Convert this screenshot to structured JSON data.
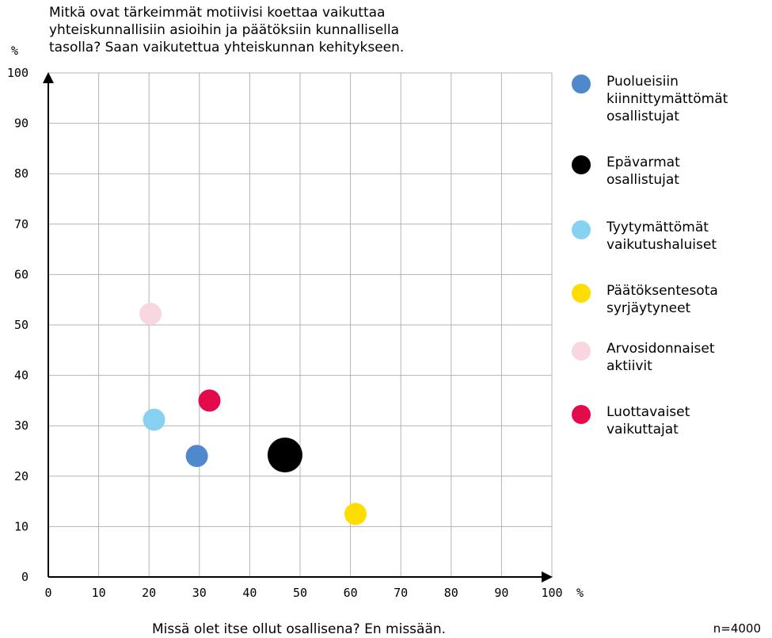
{
  "chart_data": {
    "type": "scatter",
    "title_lines": [
      "Mitkä ovat tärkeimmät motiivisi koettaa vaikuttaa",
      "yhteiskunnallisiin asioihin ja päätöksiin kunnallisella",
      "tasolla? Saan vaikutettua yhteiskunnan kehitykseen."
    ],
    "xlabel": "Missä olet itse ollut osallisena? En missään.",
    "x_unit": "%",
    "y_unit": "%",
    "xlim": [
      0,
      100
    ],
    "ylim": [
      0,
      100
    ],
    "x_ticks": [
      "0",
      "10",
      "20",
      "30",
      "40",
      "50",
      "60",
      "70",
      "80",
      "90",
      "100"
    ],
    "y_ticks": [
      "0",
      "10",
      "20",
      "30",
      "40",
      "50",
      "60",
      "70",
      "80",
      "90",
      "100"
    ],
    "grid": true,
    "legend_position": "right",
    "note": "n=4000",
    "series": [
      {
        "name_lines": [
          "Puolueisiin",
          "kiinnittymättömät",
          "osallistujat"
        ],
        "color": "#4f88cb",
        "x": 29.5,
        "y": 24,
        "size": "small"
      },
      {
        "name_lines": [
          "Epävarmat",
          "osallistujat"
        ],
        "color": "#000000",
        "x": 47,
        "y": 24.2,
        "size": "large"
      },
      {
        "name_lines": [
          "Tyytymättömät",
          "vaikutushaluiset"
        ],
        "color": "#87d1f1",
        "x": 21,
        "y": 31.2,
        "size": "small"
      },
      {
        "name_lines": [
          "Päätöksentesota",
          "syrjäytyneet"
        ],
        "color": "#ffdd00",
        "x": 61,
        "y": 12.5,
        "size": "small"
      },
      {
        "name_lines": [
          "Arvosidonnaiset",
          "aktiivit"
        ],
        "color": "#f9d7e0",
        "x": 20.3,
        "y": 52.2,
        "size": "small"
      },
      {
        "name_lines": [
          "Luottavaiset",
          "vaikuttajat"
        ],
        "color": "#e30b4b",
        "x": 32,
        "y": 35,
        "size": "small"
      }
    ]
  }
}
